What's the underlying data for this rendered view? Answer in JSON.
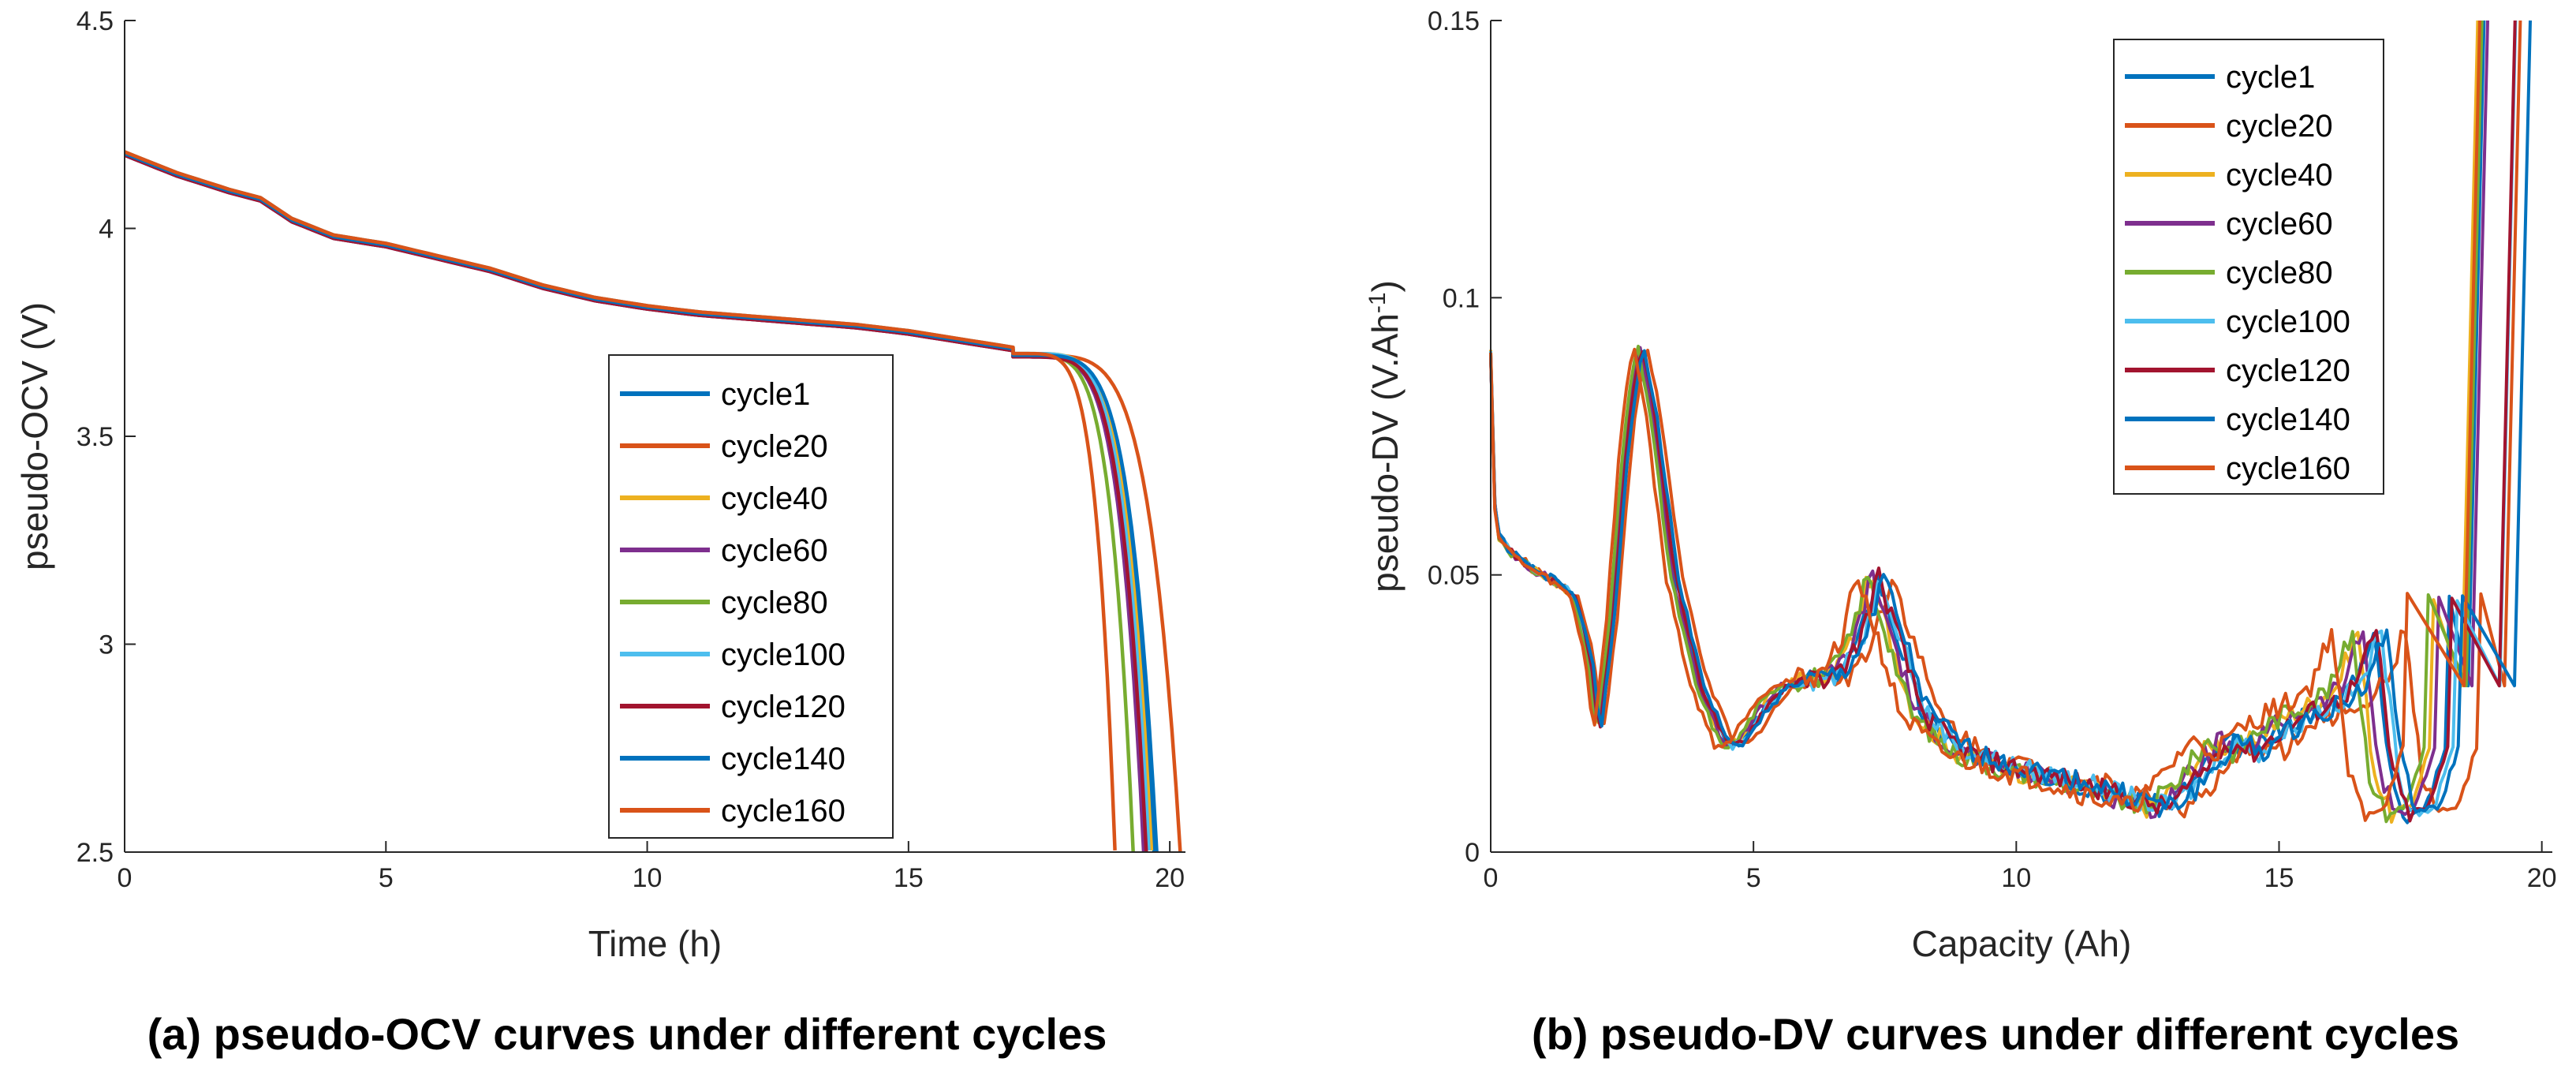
{
  "chart_data": [
    {
      "type": "line",
      "caption": "(a) pseudo-OCV curves under different cycles",
      "xlabel": "Time (h)",
      "ylabel": "pseudo-OCV (V)",
      "xlim": [
        0,
        20.3
      ],
      "ylim": [
        2.5,
        4.5
      ],
      "xticks": [
        "0",
        "5",
        "10",
        "15",
        "20"
      ],
      "yticks": [
        "2.5",
        "3",
        "3.5",
        "4",
        "4.5"
      ],
      "legend": "center-right",
      "series": [
        {
          "name": "cycle1",
          "color": "#0072BD",
          "end_time": 19.7
        },
        {
          "name": "cycle20",
          "color": "#D95319",
          "end_time": 20.2
        },
        {
          "name": "cycle40",
          "color": "#EDB120",
          "end_time": 19.65
        },
        {
          "name": "cycle60",
          "color": "#7E2F8E",
          "end_time": 19.5
        },
        {
          "name": "cycle80",
          "color": "#77AC30",
          "end_time": 19.3
        },
        {
          "name": "cycle100",
          "color": "#4DBEEE",
          "end_time": 19.6
        },
        {
          "name": "cycle120",
          "color": "#A2142F",
          "end_time": 19.55
        },
        {
          "name": "cycle140",
          "color": "#0072BD",
          "end_time": 19.75
        },
        {
          "name": "cycle160",
          "color": "#D95319",
          "end_time": 18.95
        }
      ],
      "ocv_profile_x": [
        0,
        1,
        2,
        2.6,
        3.2,
        4,
        5,
        6,
        7,
        8,
        9,
        10,
        11,
        12,
        13,
        14,
        15,
        16,
        17,
        17.6
      ],
      "ocv_profile_y": [
        4.18,
        4.13,
        4.09,
        4.07,
        4.02,
        3.98,
        3.96,
        3.93,
        3.9,
        3.86,
        3.83,
        3.81,
        3.795,
        3.785,
        3.775,
        3.765,
        3.75,
        3.73,
        3.71,
        3.695
      ]
    },
    {
      "type": "line",
      "caption": "(b) pseudo-DV curves under different cycles",
      "xlabel": "Capacity (Ah)",
      "ylabel_main": "pseudo-DV (V.Ah",
      "ylabel_sup": "-1",
      "ylabel_end": ")",
      "xlim": [
        0,
        20.2
      ],
      "ylim": [
        0,
        0.15
      ],
      "xticks": [
        "0",
        "5",
        "10",
        "15",
        "20"
      ],
      "yticks": [
        "0",
        "0.05",
        "0.1",
        "0.15"
      ],
      "legend": "top-right",
      "series": [
        {
          "name": "cycle1",
          "color": "#0072BD",
          "shift": 0.0
        },
        {
          "name": "cycle20",
          "color": "#D95319",
          "shift": 0.6
        },
        {
          "name": "cycle40",
          "color": "#EDB120",
          "shift": -0.3
        },
        {
          "name": "cycle60",
          "color": "#7E2F8E",
          "shift": -0.2
        },
        {
          "name": "cycle80",
          "color": "#77AC30",
          "shift": -0.4
        },
        {
          "name": "cycle100",
          "color": "#4DBEEE",
          "shift": 0.15
        },
        {
          "name": "cycle120",
          "color": "#A2142F",
          "shift": 0.05
        },
        {
          "name": "cycle140",
          "color": "#0072BD",
          "shift": 0.25
        },
        {
          "name": "cycle160",
          "color": "#D95319",
          "shift": -0.8
        }
      ],
      "dv_profile_x": [
        0,
        0.05,
        0.15,
        0.4,
        0.8,
        1.2,
        1.6,
        1.9,
        2.05,
        2.3,
        2.6,
        2.85,
        3.1,
        3.5,
        4.0,
        4.5,
        4.8,
        5.2,
        5.6,
        6.0,
        6.6,
        7.0,
        7.35,
        7.7,
        8.2,
        9.0,
        10.0,
        11.0,
        12.0,
        12.8,
        13.3,
        14.0,
        14.5,
        15.0,
        15.5,
        16.0,
        16.4,
        16.8,
        17.1,
        17.4,
        17.8,
        18.2,
        18.4
      ],
      "dv_profile_y": [
        0.09,
        0.065,
        0.057,
        0.054,
        0.051,
        0.049,
        0.046,
        0.035,
        0.021,
        0.04,
        0.075,
        0.092,
        0.08,
        0.05,
        0.03,
        0.019,
        0.02,
        0.026,
        0.03,
        0.031,
        0.032,
        0.038,
        0.05,
        0.04,
        0.025,
        0.018,
        0.015,
        0.013,
        0.01,
        0.008,
        0.012,
        0.02,
        0.018,
        0.022,
        0.025,
        0.027,
        0.03,
        0.04,
        0.015,
        0.007,
        0.008,
        0.02,
        0.15
      ]
    }
  ]
}
